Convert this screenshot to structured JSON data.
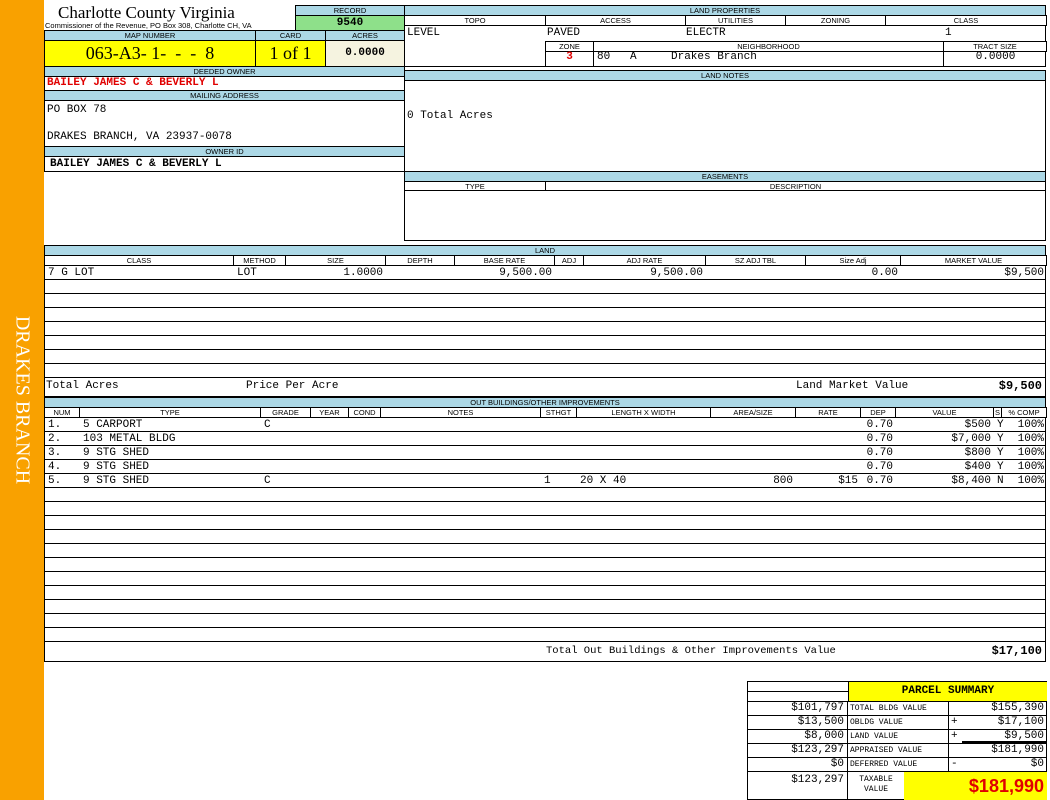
{
  "sidebar": {
    "label": "DRAKES BRANCH"
  },
  "header": {
    "title": "Charlotte County Virginia",
    "subtitle": "Commissioner of the Revenue, PO Box 308, Charlotte CH, VA",
    "record_label": "RECORD",
    "record": "9540"
  },
  "parcel": {
    "map_label": "MAP NUMBER",
    "map": "063-A3- 1-  -  -  8",
    "card_label": "CARD",
    "card": "1 of 1",
    "acres_label": "ACRES",
    "acres": "0.0000"
  },
  "owner": {
    "deeded_label": "DEEDED OWNER",
    "deeded": "BAILEY JAMES C & BEVERLY L",
    "mailing_label": "MAILING ADDRESS",
    "address1": "PO BOX 78",
    "address2": "DRAKES BRANCH, VA 23937-0078",
    "id_label": "OWNER ID",
    "id": "BAILEY JAMES C & BEVERLY L"
  },
  "land_properties": {
    "title": "LAND PROPERTIES",
    "topo_label": "TOPO",
    "topo": "LEVEL",
    "access_label": "ACCESS",
    "access": "PAVED",
    "utilities_label": "UTILITIES",
    "utilities": "ELECTR",
    "zoning_label": "ZONING",
    "zoning": "",
    "class_label": "CLASS",
    "class": "1",
    "zone_label": "ZONE",
    "zone": "3",
    "neighborhood_label": "NEIGHBORHOOD",
    "neighborhood_code": "80   A",
    "neighborhood": "Drakes Branch",
    "tract_label": "TRACT SIZE",
    "tract": "0.0000"
  },
  "land_notes": {
    "title": "LAND NOTES",
    "text": "0 Total Acres"
  },
  "easements": {
    "title": "EASEMENTS",
    "type_label": "TYPE",
    "desc_label": "DESCRIPTION"
  },
  "land": {
    "title": "LAND",
    "columns": [
      "CLASS",
      "METHOD",
      "SIZE",
      "DEPTH",
      "BASE RATE",
      "ADJ",
      "ADJ RATE",
      "SZ ADJ TBL",
      "Size Adj",
      "MARKET VALUE"
    ],
    "rows": [
      [
        "7 G LOT",
        "LOT",
        "1.0000",
        "",
        "9,500.00",
        "",
        "9,500.00",
        "",
        "0.00",
        "$9,500"
      ]
    ],
    "total_acres_label": "Total Acres",
    "price_per_acre_label": "Price Per Acre",
    "market_label": "Land Market Value",
    "market": "$9,500"
  },
  "outbuildings": {
    "title": "OUT BUILDINGS/OTHER IMPROVEMENTS",
    "columns": [
      "NUM",
      "TYPE",
      "GRADE",
      "YEAR",
      "COND",
      "NOTES",
      "STHGT",
      "LENGTH X WIDTH",
      "AREA/SIZE",
      "RATE",
      "DEP",
      "VALUE",
      "S",
      "% COMP"
    ],
    "rows": [
      [
        "1.",
        "5 CARPORT",
        "C",
        "",
        "",
        "",
        "",
        "",
        "",
        "",
        "0.70",
        "$500",
        "Y",
        "100%"
      ],
      [
        "2.",
        "103 METAL BLDG",
        "",
        "",
        "",
        "",
        "",
        "",
        "",
        "",
        "0.70",
        "$7,000",
        "Y",
        "100%"
      ],
      [
        "3.",
        "9 STG SHED",
        "",
        "",
        "",
        "",
        "",
        "",
        "",
        "",
        "0.70",
        "$800",
        "Y",
        "100%"
      ],
      [
        "4.",
        "9 STG SHED",
        "",
        "",
        "",
        "",
        "",
        "",
        "",
        "",
        "0.70",
        "$400",
        "Y",
        "100%"
      ],
      [
        "5.",
        "9 STG SHED",
        "C",
        "",
        "",
        "",
        "1",
        "20 X 40",
        "800",
        "$15",
        "0.70",
        "$8,400",
        "N",
        "100%"
      ]
    ],
    "total_label": "Total Out Buildings & Other Improvements Value",
    "total": "$17,100"
  },
  "summary": {
    "title": "PARCEL SUMMARY",
    "rows": [
      [
        "$101,797",
        "TOTAL BLDG VALUE",
        "",
        "$155,390"
      ],
      [
        "$13,500",
        "OBLDG VALUE",
        "+",
        "$17,100"
      ],
      [
        "$8,000",
        "LAND VALUE",
        "+",
        "$9,500"
      ],
      [
        "$123,297",
        "APPRAISED VALUE",
        "",
        "$181,990"
      ],
      [
        "$0",
        "DEFERRED VALUE",
        "-",
        "$0"
      ]
    ],
    "taxable_left": "$123,297",
    "taxable_label": "TAXABLE VALUE",
    "taxable": "$181,990"
  },
  "colors": {
    "sidebar": "#f9a100",
    "header": "#acd8e6",
    "highlight": "#ffff00",
    "record": "#8ee08a",
    "owner_red": "#e00000"
  }
}
